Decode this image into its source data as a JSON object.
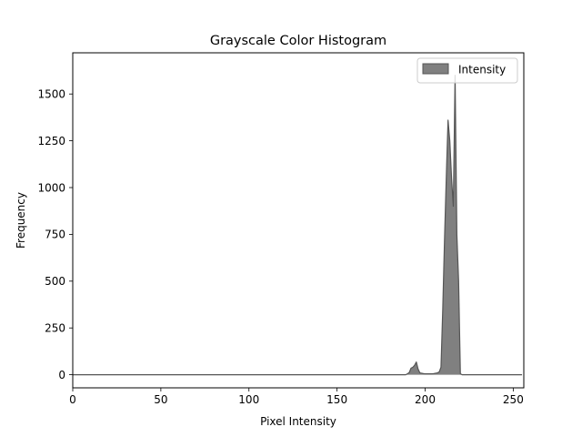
{
  "chart_data": {
    "type": "area",
    "title": "Grayscale Color Histogram",
    "xlabel": "Pixel Intensity",
    "ylabel": "Frequency",
    "xlim": [
      0,
      256
    ],
    "ylim": [
      -70,
      1720
    ],
    "xticks": [
      0,
      50,
      100,
      150,
      200,
      250
    ],
    "yticks": [
      0,
      250,
      500,
      750,
      1000,
      1250,
      1500
    ],
    "grid": false,
    "legend_position": "top-right",
    "series": [
      {
        "name": "Intensity",
        "color": "#808080",
        "edge_color": "#555555",
        "x": [
          0,
          189,
          190,
          191,
          192,
          193,
          194,
          195,
          196,
          197,
          198,
          199,
          200,
          201,
          202,
          203,
          204,
          205,
          206,
          207,
          208,
          209,
          210,
          211,
          212,
          213,
          214,
          215,
          216,
          217,
          218,
          219,
          220,
          221,
          222,
          255
        ],
        "values": [
          0,
          0,
          5,
          12,
          35,
          40,
          50,
          68,
          30,
          10,
          8,
          6,
          5,
          5,
          5,
          5,
          5,
          6,
          8,
          10,
          15,
          40,
          350,
          720,
          1050,
          1360,
          1250,
          1050,
          900,
          1600,
          750,
          500,
          5,
          0,
          0,
          0
        ]
      }
    ]
  }
}
